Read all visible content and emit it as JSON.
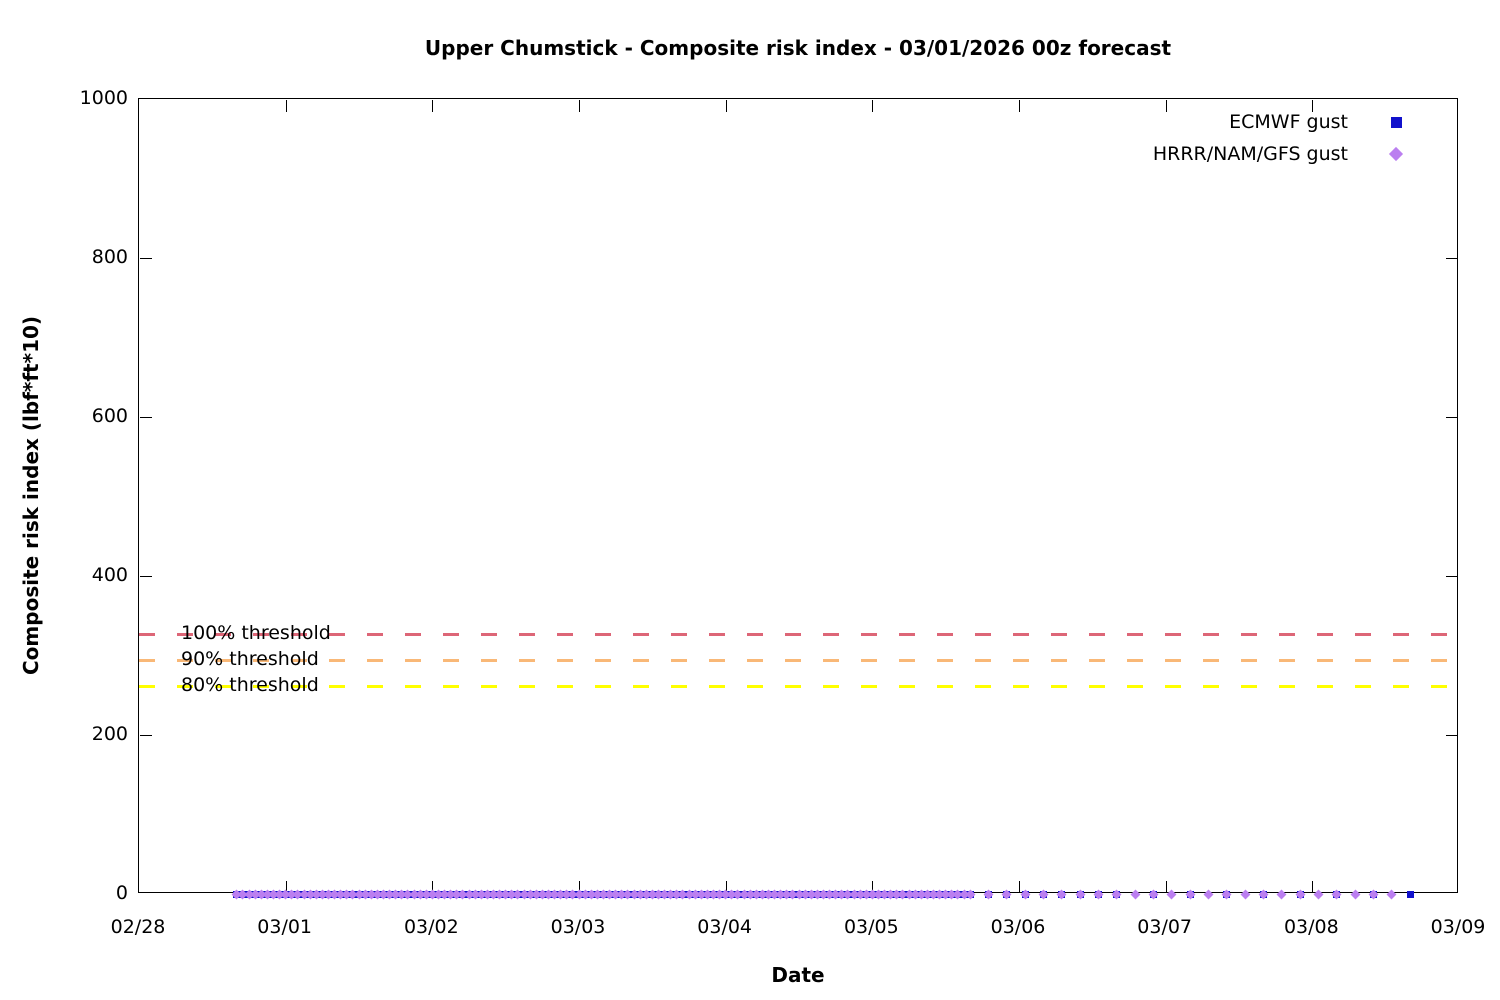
{
  "title": "Upper Chumstick - Composite risk index - 03/01/2026 00z forecast",
  "chart_data": {
    "type": "scatter",
    "title": "Upper Chumstick - Composite risk index - 03/01/2026 00z forecast",
    "xlabel": "Date",
    "ylabel": "Composite risk index (lbf*ft*10)",
    "ylim": [
      0,
      1000
    ],
    "yticks": [
      0,
      200,
      400,
      600,
      800,
      1000
    ],
    "xtick_labels": [
      "02/28",
      "03/01",
      "03/02",
      "03/03",
      "03/04",
      "03/05",
      "03/06",
      "03/07",
      "03/08",
      "03/09"
    ],
    "x_days_span": 9,
    "grid": false,
    "legend_position": "top-right",
    "thresholds": [
      {
        "label": "100% threshold",
        "value": 327,
        "color": "#dd6677"
      },
      {
        "label": "90% threshold",
        "value": 294,
        "color": "#f9b877"
      },
      {
        "label": "80% threshold",
        "value": 262,
        "color": "#ffff00"
      }
    ],
    "series": [
      {
        "name": "ECMWF gust",
        "marker": "square",
        "color": "#1111cc",
        "y_value": 0,
        "note": "all points at y=0; hours measured from 02/28 00:00 on x-axis",
        "segments": [
          {
            "start_hour": 16,
            "end_hour": 136,
            "step_hours": 1
          },
          {
            "start_hour": 139,
            "end_hour": 160,
            "step_hours": 3
          },
          {
            "start_hour": 166,
            "end_hour": 208,
            "step_hours": 6
          }
        ]
      },
      {
        "name": "HRRR/NAM/GFS gust",
        "marker": "diamond",
        "color": "#bb7ff0",
        "y_value": 0,
        "note": "all points at y=0; hours measured from 02/28 00:00 on x-axis",
        "segments": [
          {
            "start_hour": 16,
            "end_hour": 136,
            "step_hours": 1
          },
          {
            "start_hour": 139,
            "end_hour": 205,
            "step_hours": 3
          }
        ]
      }
    ]
  }
}
